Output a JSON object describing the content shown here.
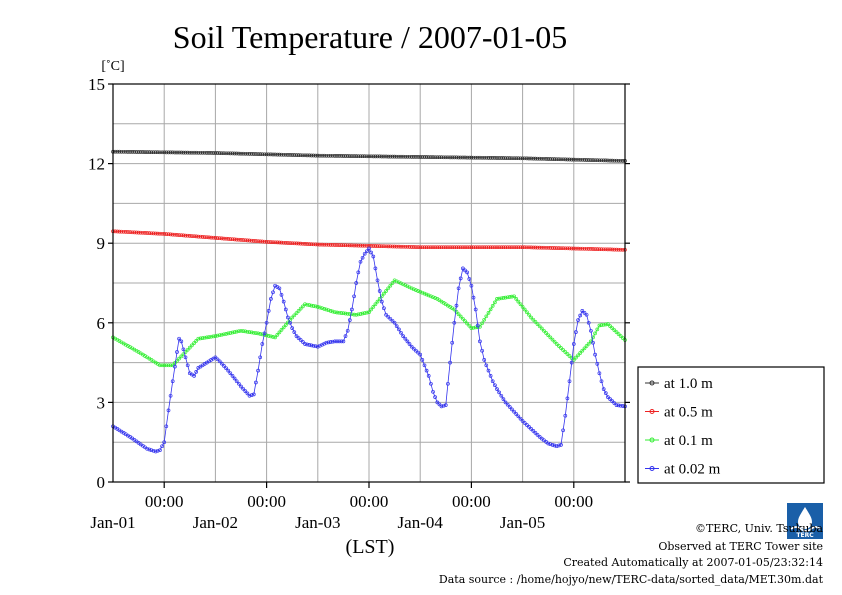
{
  "chart_data": {
    "type": "line",
    "title": "Soil Temperature / 2007-01-05",
    "ylabel": "[˚C]",
    "xlabel": "(LST)",
    "ylim": [
      0,
      15
    ],
    "yticks": [
      0,
      3,
      6,
      9,
      12,
      15
    ],
    "xlim_hours": [
      0,
      120
    ],
    "x_tick_labels": [
      {
        "time": "00:00",
        "date": "Jan-01"
      },
      {
        "time": "00:00",
        "date": "Jan-02"
      },
      {
        "time": "00:00",
        "date": "Jan-03"
      },
      {
        "time": "00:00",
        "date": "Jan-04"
      },
      {
        "time": "00:00",
        "date": "Jan-05"
      }
    ],
    "grid": true,
    "legend_position": "right, outside plot",
    "series": [
      {
        "name": "at 1.0 m",
        "color": "#333333",
        "points": [
          [
            0,
            12.45
          ],
          [
            24,
            12.4
          ],
          [
            48,
            12.3
          ],
          [
            72,
            12.25
          ],
          [
            96,
            12.2
          ],
          [
            120,
            12.1
          ]
        ]
      },
      {
        "name": "at 0.5 m",
        "color": "#ee2222",
        "points": [
          [
            0,
            9.45
          ],
          [
            12,
            9.35
          ],
          [
            24,
            9.2
          ],
          [
            36,
            9.05
          ],
          [
            48,
            8.95
          ],
          [
            60,
            8.9
          ],
          [
            72,
            8.85
          ],
          [
            84,
            8.85
          ],
          [
            96,
            8.85
          ],
          [
            108,
            8.8
          ],
          [
            120,
            8.75
          ]
        ]
      },
      {
        "name": "at 0.1 m",
        "color": "#33ee33",
        "points": [
          [
            0,
            5.45
          ],
          [
            6,
            4.9
          ],
          [
            11,
            4.4
          ],
          [
            14,
            4.4
          ],
          [
            17,
            4.9
          ],
          [
            20,
            5.4
          ],
          [
            24,
            5.5
          ],
          [
            30,
            5.7
          ],
          [
            34,
            5.6
          ],
          [
            38,
            5.45
          ],
          [
            42,
            6.2
          ],
          [
            45,
            6.7
          ],
          [
            48,
            6.6
          ],
          [
            52,
            6.4
          ],
          [
            57,
            6.3
          ],
          [
            60,
            6.4
          ],
          [
            64,
            7.2
          ],
          [
            66,
            7.6
          ],
          [
            70,
            7.3
          ],
          [
            76,
            6.9
          ],
          [
            80,
            6.5
          ],
          [
            84,
            5.8
          ],
          [
            86,
            5.85
          ],
          [
            90,
            6.9
          ],
          [
            94,
            7.0
          ],
          [
            98,
            6.2
          ],
          [
            104,
            5.2
          ],
          [
            108,
            4.6
          ],
          [
            112,
            5.3
          ],
          [
            114,
            5.9
          ],
          [
            116,
            5.95
          ],
          [
            120,
            5.35
          ]
        ]
      },
      {
        "name": "at 0.02 m",
        "color": "#3333ee",
        "points": [
          [
            0,
            2.1
          ],
          [
            4,
            1.7
          ],
          [
            8,
            1.25
          ],
          [
            10,
            1.15
          ],
          [
            11,
            1.2
          ],
          [
            12,
            1.5
          ],
          [
            13,
            2.7
          ],
          [
            14,
            3.8
          ],
          [
            15,
            4.9
          ],
          [
            15.5,
            5.4
          ],
          [
            16,
            5.3
          ],
          [
            17,
            4.7
          ],
          [
            18,
            4.1
          ],
          [
            19,
            4.0
          ],
          [
            20,
            4.3
          ],
          [
            22,
            4.5
          ],
          [
            24,
            4.7
          ],
          [
            25,
            4.55
          ],
          [
            27,
            4.2
          ],
          [
            30,
            3.6
          ],
          [
            32,
            3.25
          ],
          [
            33,
            3.3
          ],
          [
            34,
            4.2
          ],
          [
            35,
            5.2
          ],
          [
            36,
            6.0
          ],
          [
            37,
            6.9
          ],
          [
            38,
            7.4
          ],
          [
            39,
            7.3
          ],
          [
            40,
            6.8
          ],
          [
            41,
            6.2
          ],
          [
            42,
            5.8
          ],
          [
            43,
            5.5
          ],
          [
            45,
            5.2
          ],
          [
            48,
            5.1
          ],
          [
            50,
            5.25
          ],
          [
            52,
            5.3
          ],
          [
            54,
            5.3
          ],
          [
            55,
            5.7
          ],
          [
            56,
            6.5
          ],
          [
            57,
            7.5
          ],
          [
            58,
            8.3
          ],
          [
            59,
            8.6
          ],
          [
            60,
            8.8
          ],
          [
            61,
            8.5
          ],
          [
            62,
            7.6
          ],
          [
            63,
            6.8
          ],
          [
            64,
            6.3
          ],
          [
            66,
            6.0
          ],
          [
            68,
            5.5
          ],
          [
            70,
            5.1
          ],
          [
            72,
            4.8
          ],
          [
            74,
            4.0
          ],
          [
            75,
            3.4
          ],
          [
            76,
            3.0
          ],
          [
            77,
            2.85
          ],
          [
            78,
            2.9
          ],
          [
            79,
            4.5
          ],
          [
            80,
            6.0
          ],
          [
            81,
            7.3
          ],
          [
            82,
            8.05
          ],
          [
            83,
            7.9
          ],
          [
            84,
            7.4
          ],
          [
            85,
            6.5
          ],
          [
            86,
            5.3
          ],
          [
            87,
            4.6
          ],
          [
            88,
            4.2
          ],
          [
            89,
            3.8
          ],
          [
            90,
            3.5
          ],
          [
            92,
            3.0
          ],
          [
            96,
            2.3
          ],
          [
            100,
            1.7
          ],
          [
            102,
            1.45
          ],
          [
            104,
            1.35
          ],
          [
            105,
            1.4
          ],
          [
            106,
            2.5
          ],
          [
            107,
            3.8
          ],
          [
            108,
            5.2
          ],
          [
            109,
            6.1
          ],
          [
            110,
            6.45
          ],
          [
            111,
            6.3
          ],
          [
            112,
            5.7
          ],
          [
            113,
            4.8
          ],
          [
            114,
            4.1
          ],
          [
            115,
            3.5
          ],
          [
            116,
            3.2
          ],
          [
            117,
            3.05
          ],
          [
            118,
            2.9
          ],
          [
            120,
            2.85
          ]
        ]
      }
    ]
  },
  "legend": {
    "items": [
      {
        "label": "at 1.0 m",
        "color": "#333333"
      },
      {
        "label": "at 0.5 m",
        "color": "#ee2222"
      },
      {
        "label": "at 0.1 m",
        "color": "#33ee33"
      },
      {
        "label": "at 0.02 m",
        "color": "#3333ee"
      }
    ]
  },
  "credits": {
    "logo_text": "TERC",
    "copyright": "©TERC, Univ. Tsukuba",
    "observed": "Observed at TERC Tower site",
    "created": "Created Automatically at 2007-01-05/23:32:14",
    "source": "Data source : /home/hojyo/new/TERC-data/sorted_data/MET.30m.dat"
  }
}
